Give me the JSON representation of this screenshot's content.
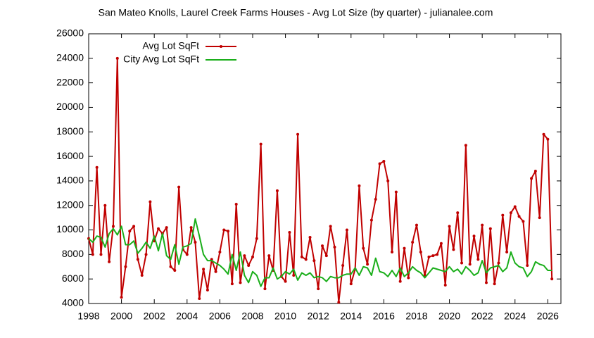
{
  "chart_data": {
    "type": "line",
    "title": "San Mateo Knolls, Laurel Creek Farms Houses - Avg Lot Size (by quarter) - julianalee.com",
    "x": [
      1998,
      1998.25,
      1998.5,
      1998.75,
      1999,
      1999.25,
      1999.5,
      1999.75,
      2000,
      2000.25,
      2000.5,
      2000.75,
      2001,
      2001.25,
      2001.5,
      2001.75,
      2002,
      2002.25,
      2002.5,
      2002.75,
      2003,
      2003.25,
      2003.5,
      2003.75,
      2004,
      2004.25,
      2004.5,
      2004.75,
      2005,
      2005.25,
      2005.5,
      2005.75,
      2006,
      2006.25,
      2006.5,
      2006.75,
      2007,
      2007.25,
      2007.5,
      2007.75,
      2008,
      2008.25,
      2008.5,
      2008.75,
      2009,
      2009.25,
      2009.5,
      2009.75,
      2010,
      2010.25,
      2010.5,
      2010.75,
      2011,
      2011.25,
      2011.5,
      2011.75,
      2012,
      2012.25,
      2012.5,
      2012.75,
      2013,
      2013.25,
      2013.5,
      2013.75,
      2014,
      2014.25,
      2014.5,
      2014.75,
      2015,
      2015.25,
      2015.5,
      2015.75,
      2016,
      2016.25,
      2016.5,
      2016.75,
      2017,
      2017.25,
      2017.5,
      2017.75,
      2018,
      2018.25,
      2018.5,
      2018.75,
      2019,
      2019.25,
      2019.5,
      2019.75,
      2020,
      2020.25,
      2020.5,
      2020.75,
      2021,
      2021.25,
      2021.5,
      2021.75,
      2022,
      2022.25,
      2022.5,
      2022.75,
      2023,
      2023.25,
      2023.5,
      2023.75,
      2024,
      2024.25,
      2024.5,
      2024.75,
      2025,
      2025.25,
      2025.5,
      2025.75,
      2026,
      2026.25
    ],
    "series": [
      {
        "name": "Avg Lot SqFt",
        "color": "#c00000",
        "markers": true,
        "values": [
          9300,
          8000,
          15100,
          8000,
          12000,
          7400,
          10300,
          24000,
          4500,
          7000,
          9900,
          10300,
          7600,
          6300,
          8000,
          12300,
          9100,
          10100,
          9700,
          10200,
          7000,
          6700,
          13500,
          8400,
          8000,
          10200,
          9000,
          4400,
          6800,
          5100,
          7600,
          6600,
          8200,
          10000,
          9900,
          5600,
          12100,
          5700,
          7900,
          7100,
          7800,
          9300,
          17000,
          5200,
          7900,
          6700,
          13200,
          6200,
          5800,
          9800,
          6300,
          17800,
          7800,
          7600,
          9400,
          7500,
          5200,
          8700,
          7900,
          10300,
          8600,
          4100,
          7100,
          10000,
          5600,
          6800,
          13600,
          8500,
          7200,
          10800,
          12500,
          15400,
          15600,
          14000,
          8200,
          13100,
          5800,
          8500,
          6100,
          9000,
          10400,
          8200,
          6300,
          7800,
          7900,
          8000,
          8900,
          5500,
          10300,
          8400,
          11400,
          7300,
          16900,
          7200,
          9500,
          7600,
          10400,
          5700,
          10100,
          5600,
          7300,
          11200,
          8200,
          11400,
          11900,
          11100,
          10700,
          7100,
          14200,
          14800,
          11000,
          17800,
          17400,
          6000
        ]
      },
      {
        "name": "City Avg Lot SqFt",
        "color": "#1aae1a",
        "markers": false,
        "values": [
          9300,
          9000,
          9500,
          9400,
          8600,
          9700,
          10100,
          9600,
          10300,
          8800,
          8800,
          9100,
          8100,
          8500,
          9000,
          8500,
          9500,
          8300,
          9700,
          7900,
          7600,
          8800,
          7200,
          8600,
          8700,
          8900,
          10900,
          9500,
          8000,
          7500,
          7500,
          7300,
          7100,
          6800,
          6400,
          8000,
          6700,
          8200,
          6300,
          5700,
          6600,
          6300,
          5400,
          6100,
          6100,
          6900,
          6000,
          6200,
          6600,
          6400,
          6800,
          5900,
          6500,
          6300,
          6500,
          6100,
          6200,
          6100,
          5800,
          6200,
          6100,
          6100,
          6300,
          6400,
          6400,
          6900,
          6300,
          7000,
          6900,
          6300,
          7700,
          6600,
          6500,
          6200,
          6700,
          6200,
          6900,
          6200,
          6500,
          7000,
          6700,
          6500,
          6100,
          6500,
          6900,
          6800,
          6700,
          6600,
          7000,
          6600,
          6800,
          6400,
          7000,
          6700,
          6300,
          6500,
          7500,
          6500,
          6900,
          7000,
          7100,
          6600,
          6900,
          8200,
          7300,
          7000,
          6900,
          6200,
          6600,
          7400,
          7200,
          7100,
          6700,
          6700
        ]
      }
    ],
    "xlim": [
      1998,
      2026.8
    ],
    "xticks": [
      1998,
      2000,
      2002,
      2004,
      2006,
      2008,
      2010,
      2012,
      2014,
      2016,
      2018,
      2020,
      2022,
      2024,
      2026
    ],
    "ylim": [
      4000,
      26000
    ],
    "yticks": [
      4000,
      6000,
      8000,
      10000,
      12000,
      14000,
      16000,
      18000,
      20000,
      22000,
      24000,
      26000
    ],
    "grid": false
  }
}
